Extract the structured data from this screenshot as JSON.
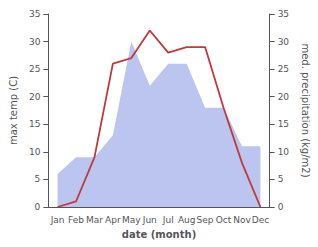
{
  "chart_data": {
    "type": "line",
    "xlabel": "date (month)",
    "ylabel": "max temp (C)",
    "y2label": "med. precipitation (kg/m2)",
    "categories": [
      "Jan",
      "Feb",
      "Mar",
      "Apr",
      "May",
      "Jun",
      "Jul",
      "Aug",
      "Sep",
      "Oct",
      "Nov",
      "Dec"
    ],
    "series": [
      {
        "type": "area",
        "color": "#bcc5f0",
        "values": [
          6,
          9,
          9,
          13,
          30,
          22,
          26,
          26,
          18,
          18,
          11,
          11
        ]
      },
      {
        "type": "line",
        "color": "#c0393b",
        "values": [
          0,
          1,
          9,
          26,
          27,
          32,
          28,
          29,
          29,
          18,
          8,
          0
        ]
      }
    ],
    "ylim": [
      0,
      35
    ],
    "yticks": [
      0,
      5,
      10,
      15,
      20,
      25,
      30,
      35
    ],
    "y2lim": [
      0,
      35
    ],
    "y2ticks": [
      0,
      5,
      10,
      15,
      20,
      25,
      30,
      35
    ],
    "grid": false
  }
}
